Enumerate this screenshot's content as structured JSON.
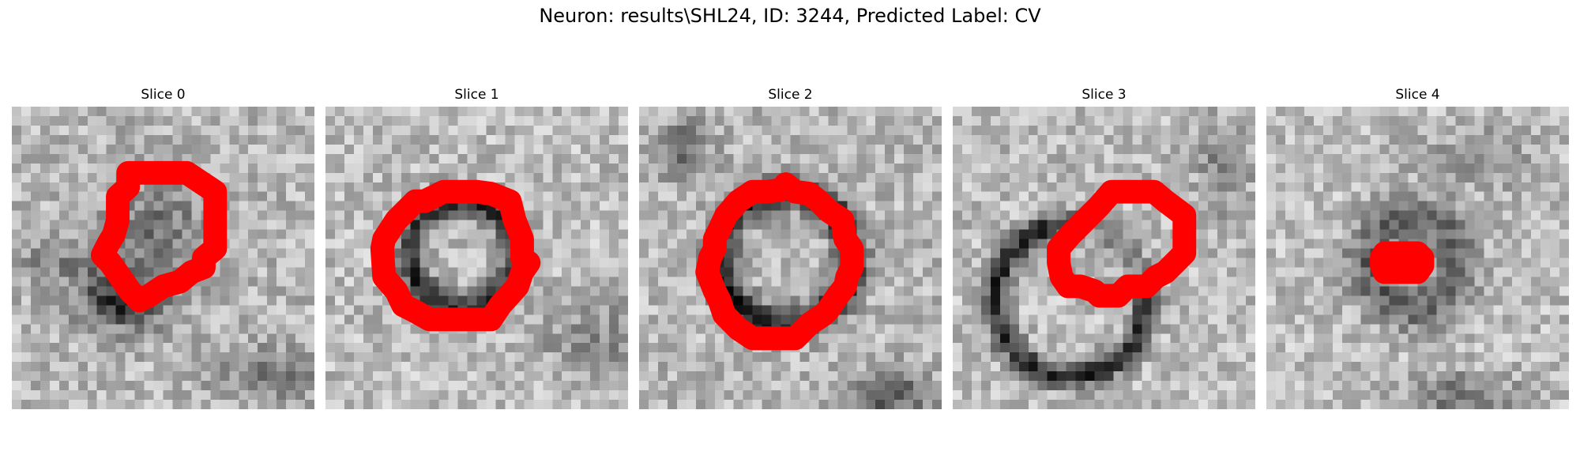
{
  "figure": {
    "title": "Neuron: results\\SHL24, ID: 3244, Predicted Label: CV",
    "contour_color": "#ff0000"
  },
  "panels": [
    {
      "title": "Slice 0"
    },
    {
      "title": "Slice 1"
    },
    {
      "title": "Slice 2"
    },
    {
      "title": "Slice 3"
    },
    {
      "title": "Slice 4"
    }
  ]
}
